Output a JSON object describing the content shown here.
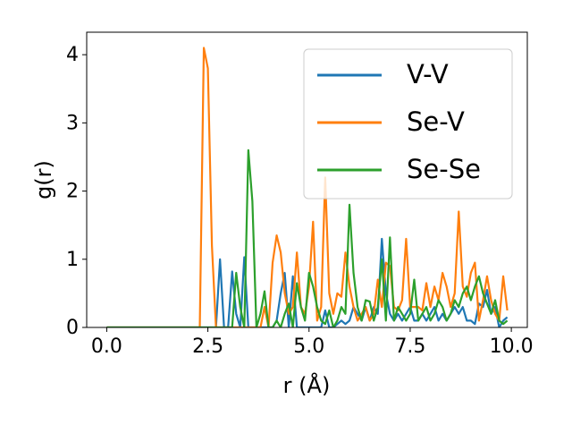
{
  "chart_data": {
    "type": "line",
    "xlabel": "r (Å)",
    "ylabel": "g(r)",
    "x": [
      0,
      0.1,
      0.2,
      0.3,
      0.4,
      0.5,
      0.6,
      0.7,
      0.8,
      0.9,
      1,
      1.1,
      1.2,
      1.3,
      1.4,
      1.5,
      1.6,
      1.7,
      1.8,
      1.9,
      2,
      2.1,
      2.2,
      2.3,
      2.4,
      2.5,
      2.6,
      2.7,
      2.8,
      2.9,
      3,
      3.1,
      3.2,
      3.3,
      3.4,
      3.5,
      3.6,
      3.7,
      3.8,
      3.9,
      4,
      4.1,
      4.2,
      4.3,
      4.4,
      4.5,
      4.6,
      4.7,
      4.8,
      4.9,
      5,
      5.1,
      5.2,
      5.3,
      5.4,
      5.5,
      5.6,
      5.7,
      5.8,
      5.9,
      6,
      6.1,
      6.2,
      6.3,
      6.4,
      6.5,
      6.6,
      6.7,
      6.8,
      6.9,
      7,
      7.1,
      7.2,
      7.3,
      7.4,
      7.5,
      7.6,
      7.7,
      7.8,
      7.9,
      8,
      8.1,
      8.2,
      8.3,
      8.4,
      8.5,
      8.6,
      8.7,
      8.8,
      8.9,
      9,
      9.1,
      9.2,
      9.3,
      9.4,
      9.5,
      9.6,
      9.7,
      9.8,
      9.9
    ],
    "series": [
      {
        "name": "V-V",
        "color": "#1f77b4",
        "values": [
          0,
          0,
          0,
          0,
          0,
          0,
          0,
          0,
          0,
          0,
          0,
          0,
          0,
          0,
          0,
          0,
          0,
          0,
          0,
          0,
          0,
          0,
          0,
          0,
          0,
          0,
          0,
          0,
          1,
          0,
          0,
          0.82,
          0.2,
          0,
          1.03,
          0,
          0,
          0,
          0,
          0,
          0,
          0,
          0.1,
          0.5,
          0.8,
          0,
          0.75,
          0,
          0,
          0,
          0,
          0,
          0,
          0,
          0.25,
          0,
          0,
          0.05,
          0.1,
          0.05,
          0.1,
          0.3,
          0.2,
          0.1,
          0.3,
          0.1,
          0.3,
          0.2,
          1.3,
          0.5,
          0.2,
          0.1,
          0.2,
          0.1,
          0.2,
          0.3,
          0.1,
          0.1,
          0.2,
          0.1,
          0.2,
          0.3,
          0.1,
          0.2,
          0.1,
          0.2,
          0.3,
          0.2,
          0.3,
          0.1,
          0.1,
          0.05,
          0.35,
          0.3,
          0.55,
          0.2,
          0.3,
          0,
          0.1,
          0.15
        ]
      },
      {
        "name": "Se-V",
        "color": "#ff7f0e",
        "values": [
          0,
          0,
          0,
          0,
          0,
          0,
          0,
          0,
          0,
          0,
          0,
          0,
          0,
          0,
          0,
          0,
          0,
          0,
          0,
          0,
          0,
          0,
          0,
          0,
          4.1,
          3.8,
          1.2,
          0,
          0,
          0,
          0,
          0,
          0,
          0,
          0,
          0,
          0,
          0,
          0,
          0.3,
          0,
          0.95,
          1.35,
          1.1,
          0.5,
          0.2,
          0.3,
          1.1,
          0.3,
          0.2,
          0.6,
          1.55,
          0.1,
          0.3,
          2.2,
          0.5,
          0.2,
          0.5,
          0.45,
          1.1,
          0.6,
          0.3,
          0.1,
          0.2,
          0.3,
          0.1,
          0.2,
          0.7,
          0.3,
          0.95,
          0.9,
          0.3,
          0.25,
          0.4,
          1.3,
          0.3,
          0.3,
          0.3,
          0.25,
          0.65,
          0.3,
          0.6,
          0.4,
          0.8,
          0.6,
          0.3,
          0.5,
          1.7,
          0.6,
          0.45,
          0.8,
          0.95,
          0.1,
          0.4,
          0.75,
          0.4,
          0.2,
          0.1,
          0.75,
          0.25
        ]
      },
      {
        "name": "Se-Se",
        "color": "#2ca02c",
        "values": [
          0,
          0,
          0,
          0,
          0,
          0,
          0,
          0,
          0,
          0,
          0,
          0,
          0,
          0,
          0,
          0,
          0,
          0,
          0,
          0,
          0,
          0,
          0,
          0,
          0,
          0,
          0,
          0,
          0,
          0,
          0,
          0,
          0.8,
          0.3,
          0,
          2.6,
          1.85,
          0,
          0.2,
          0.53,
          0,
          0,
          0.1,
          0,
          0.2,
          0.35,
          0,
          0.65,
          0.3,
          0.1,
          0.8,
          0.6,
          0.3,
          0.1,
          0.05,
          0.25,
          0,
          0.1,
          0.3,
          0.2,
          1.8,
          0.8,
          0.3,
          0.1,
          0.4,
          0.38,
          0.1,
          0.3,
          1,
          0.1,
          1.32,
          0.1,
          0.3,
          0.2,
          0.1,
          0.2,
          0.7,
          0.1,
          0.2,
          0.3,
          0.1,
          0.2,
          0.4,
          0.3,
          0.1,
          0.2,
          0.4,
          0.3,
          0.5,
          0.6,
          0.4,
          0.6,
          0.75,
          0.5,
          0.35,
          0.2,
          0.4,
          0.1,
          0.05,
          0.1
        ]
      }
    ],
    "xlim": [
      -0.495,
      10.395
    ],
    "ylim": [
      0,
      4.33
    ],
    "xticks": [
      {
        "value": 0,
        "label": "0.0"
      },
      2.5,
      {
        "value": 5,
        "label": "5.0"
      },
      7.5,
      {
        "value": 10,
        "label": "10.0"
      }
    ],
    "yticks": [
      0,
      1,
      2,
      3,
      4
    ],
    "legend": "upper right",
    "grid": false
  }
}
